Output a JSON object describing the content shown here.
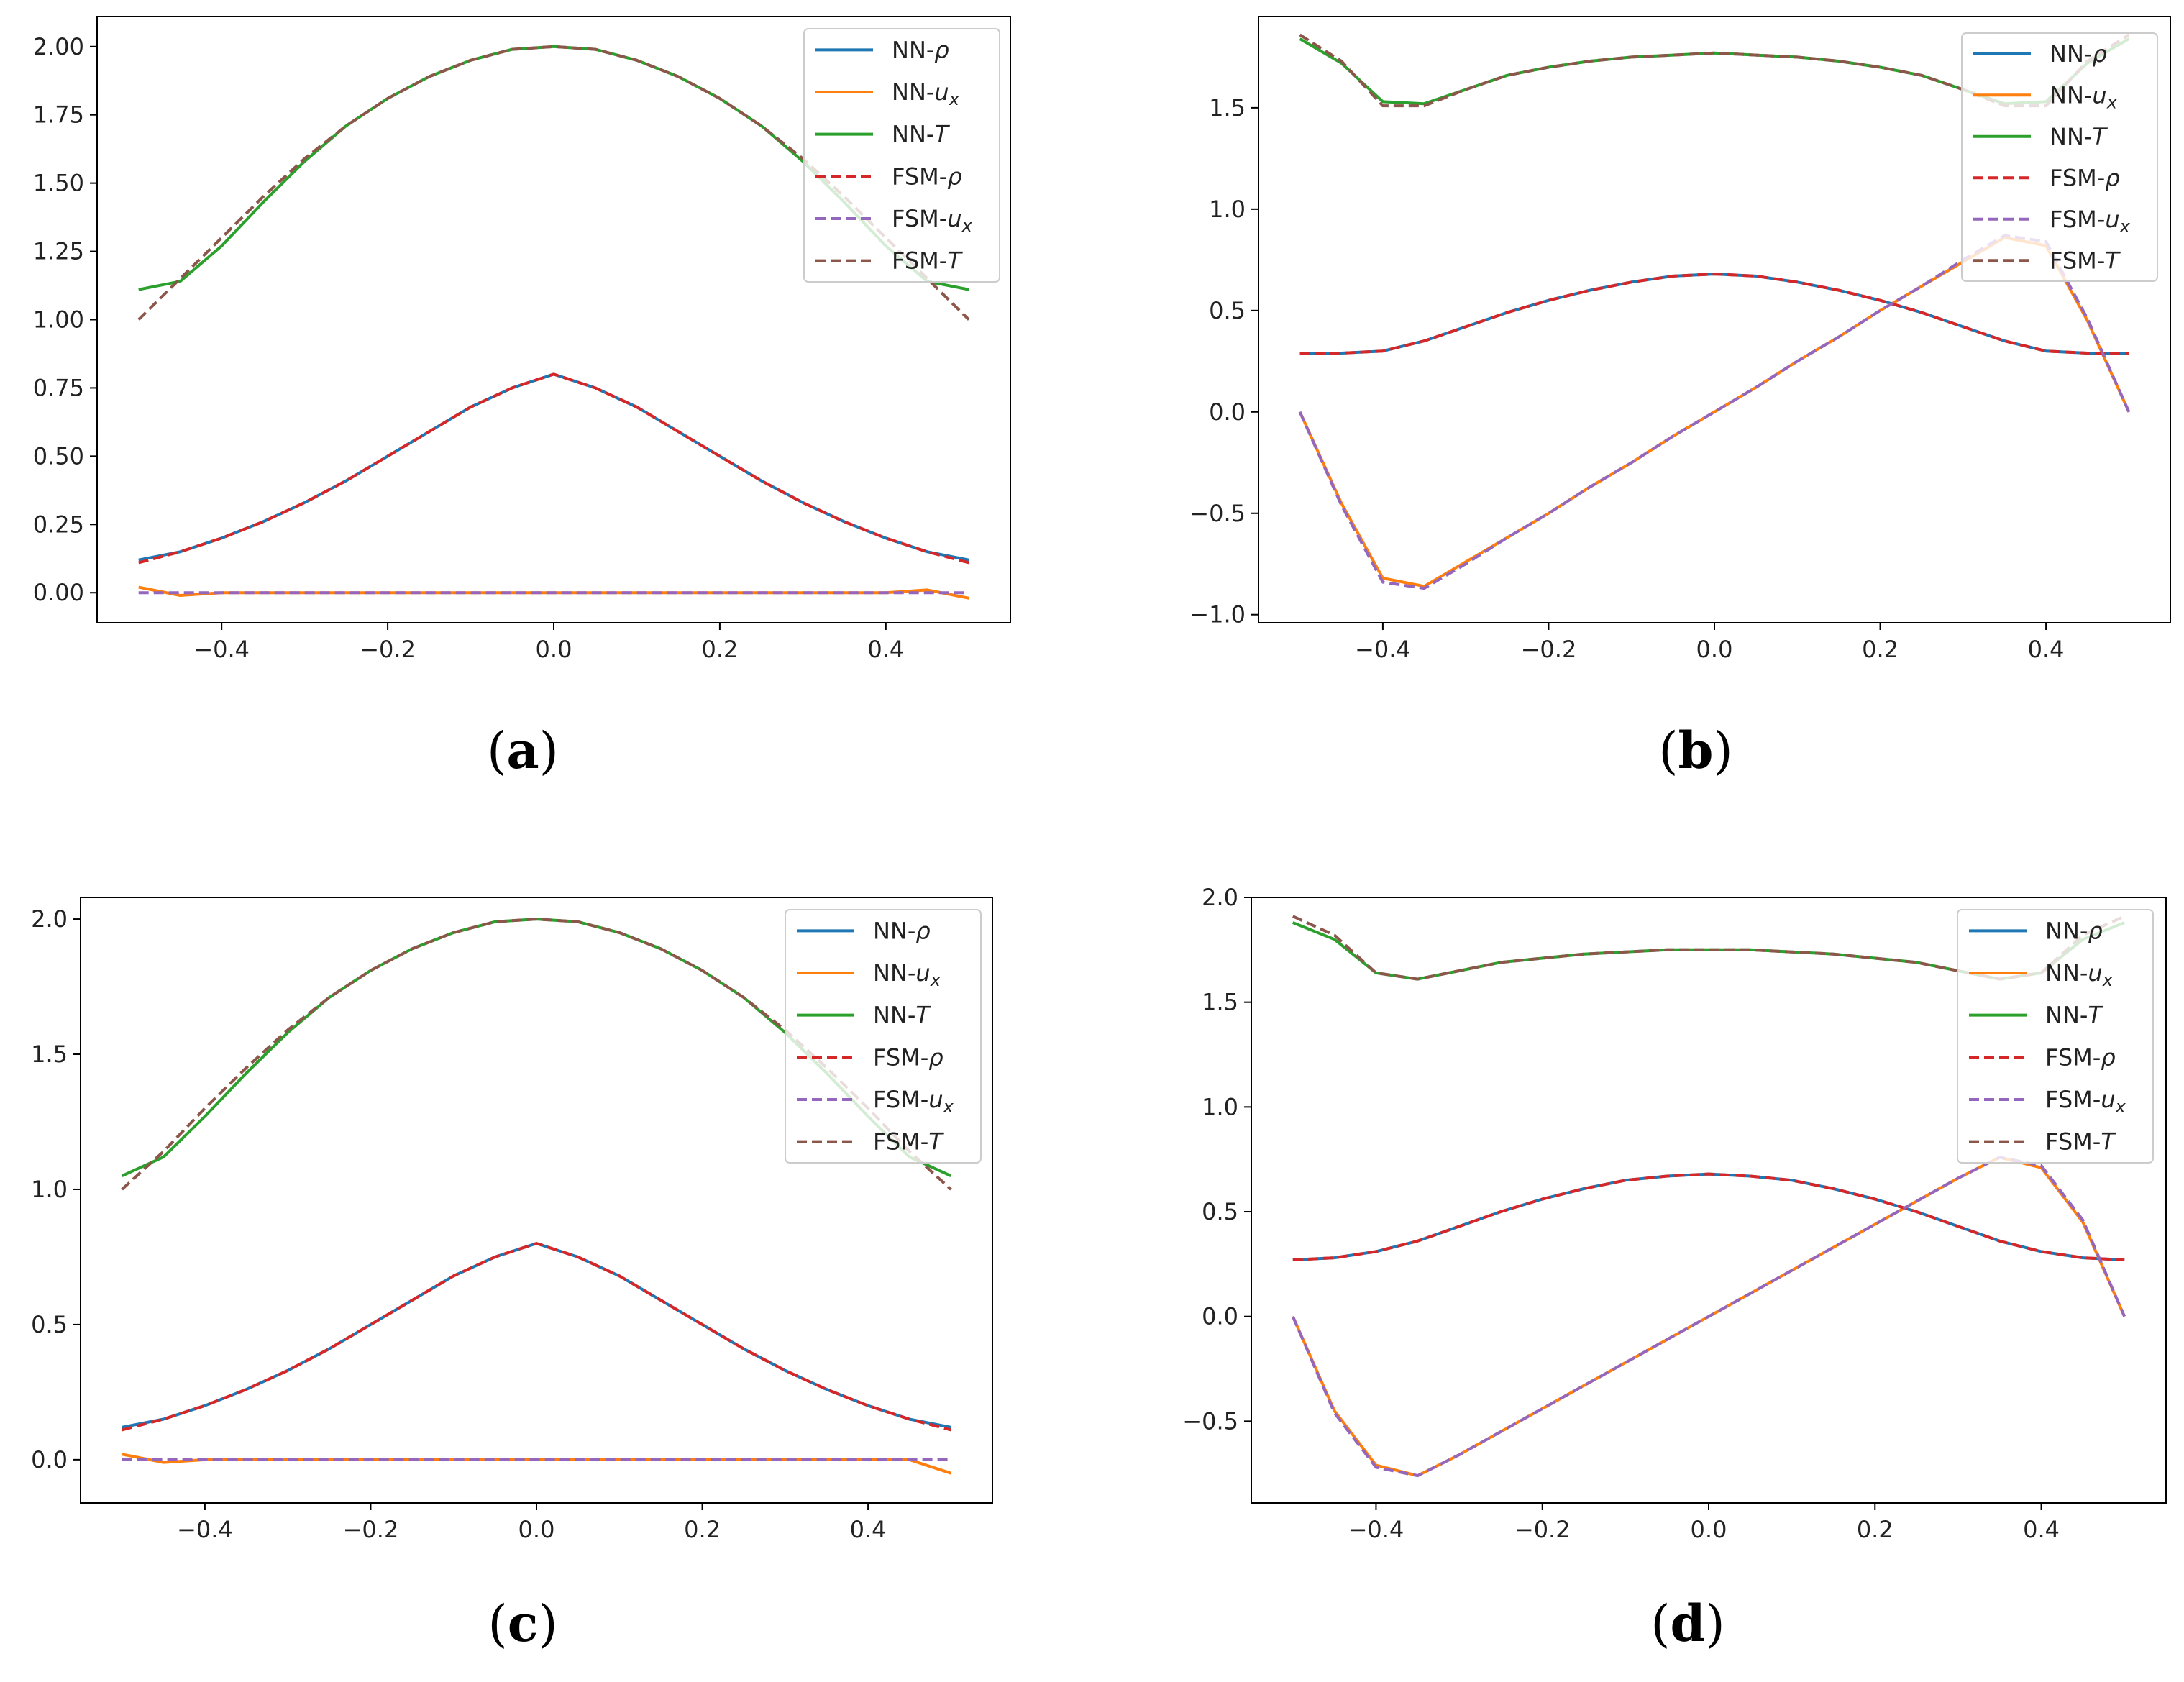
{
  "figure": {
    "colors": {
      "NN_rho": "#1f77b4",
      "NN_ux": "#ff7f0e",
      "NN_T": "#2ca02c",
      "FSM_rho": "#d62728",
      "FSM_ux": "#9467bd",
      "FSM_T": "#8c564b"
    },
    "legend": [
      {
        "prefix": "NN-",
        "symbol": "ρ",
        "sub": "",
        "style": "solid",
        "color_key": "NN_rho"
      },
      {
        "prefix": "NN-",
        "symbol": "u",
        "sub": "x",
        "style": "solid",
        "color_key": "NN_ux"
      },
      {
        "prefix": "NN-",
        "symbol": "T",
        "sub": "",
        "style": "solid",
        "color_key": "NN_T"
      },
      {
        "prefix": "FSM-",
        "symbol": "ρ",
        "sub": "",
        "style": "dashed",
        "color_key": "FSM_rho"
      },
      {
        "prefix": "FSM-",
        "symbol": "u",
        "sub": "x",
        "style": "dashed",
        "color_key": "FSM_ux"
      },
      {
        "prefix": "FSM-",
        "symbol": "T",
        "sub": "",
        "style": "dashed",
        "color_key": "FSM_T"
      }
    ]
  },
  "chart_data": [
    {
      "type": "line",
      "panel_label": {
        "open": "(",
        "letter": "a",
        "close": ")"
      },
      "xlim": [
        -0.55,
        0.55
      ],
      "ylim": [
        -0.11,
        2.11
      ],
      "xticks": [
        {
          "v": -0.4,
          "label": "−0.4"
        },
        {
          "v": -0.2,
          "label": "−0.2"
        },
        {
          "v": 0.0,
          "label": "0.0"
        },
        {
          "v": 0.2,
          "label": "0.2"
        },
        {
          "v": 0.4,
          "label": "0.4"
        }
      ],
      "yticks": [
        {
          "v": 0.0,
          "label": "0.00"
        },
        {
          "v": 0.25,
          "label": "0.25"
        },
        {
          "v": 0.5,
          "label": "0.50"
        },
        {
          "v": 0.75,
          "label": "0.75"
        },
        {
          "v": 1.0,
          "label": "1.00"
        },
        {
          "v": 1.25,
          "label": "1.25"
        },
        {
          "v": 1.5,
          "label": "1.50"
        },
        {
          "v": 1.75,
          "label": "1.75"
        },
        {
          "v": 2.0,
          "label": "2.00"
        }
      ],
      "legend_position": "top-right",
      "x": [
        -0.5,
        -0.45,
        -0.4,
        -0.35,
        -0.3,
        -0.25,
        -0.2,
        -0.15,
        -0.1,
        -0.05,
        0.0,
        0.05,
        0.1,
        0.15,
        0.2,
        0.25,
        0.3,
        0.35,
        0.4,
        0.45,
        0.5
      ],
      "series": [
        {
          "name": "NN-ρ",
          "color_key": "NN_rho",
          "style": "solid",
          "values": [
            0.12,
            0.15,
            0.2,
            0.26,
            0.33,
            0.41,
            0.5,
            0.59,
            0.68,
            0.75,
            0.8,
            0.75,
            0.68,
            0.59,
            0.5,
            0.41,
            0.33,
            0.26,
            0.2,
            0.15,
            0.12
          ]
        },
        {
          "name": "NN-ux",
          "color_key": "NN_ux",
          "style": "solid",
          "values": [
            0.02,
            -0.01,
            0.0,
            0.0,
            0.0,
            0.0,
            0.0,
            0.0,
            0.0,
            0.0,
            0.0,
            0.0,
            0.0,
            0.0,
            0.0,
            0.0,
            0.0,
            0.0,
            0.0,
            0.01,
            -0.02
          ]
        },
        {
          "name": "NN-T",
          "color_key": "NN_T",
          "style": "solid",
          "values": [
            1.11,
            1.14,
            1.27,
            1.43,
            1.58,
            1.71,
            1.81,
            1.89,
            1.95,
            1.99,
            2.0,
            1.99,
            1.95,
            1.89,
            1.81,
            1.71,
            1.58,
            1.43,
            1.27,
            1.14,
            1.11
          ]
        },
        {
          "name": "FSM-ρ",
          "color_key": "FSM_rho",
          "style": "dashed",
          "values": [
            0.11,
            0.15,
            0.2,
            0.26,
            0.33,
            0.41,
            0.5,
            0.59,
            0.68,
            0.75,
            0.8,
            0.75,
            0.68,
            0.59,
            0.5,
            0.41,
            0.33,
            0.26,
            0.2,
            0.15,
            0.11
          ]
        },
        {
          "name": "FSM-ux",
          "color_key": "FSM_ux",
          "style": "dashed",
          "values": [
            0.0,
            0.0,
            0.0,
            0.0,
            0.0,
            0.0,
            0.0,
            0.0,
            0.0,
            0.0,
            0.0,
            0.0,
            0.0,
            0.0,
            0.0,
            0.0,
            0.0,
            0.0,
            0.0,
            0.0,
            0.0
          ]
        },
        {
          "name": "FSM-T",
          "color_key": "FSM_T",
          "style": "dashed",
          "values": [
            1.0,
            1.15,
            1.3,
            1.45,
            1.59,
            1.71,
            1.81,
            1.89,
            1.95,
            1.99,
            2.0,
            1.99,
            1.95,
            1.89,
            1.81,
            1.71,
            1.59,
            1.45,
            1.3,
            1.15,
            1.0
          ]
        }
      ]
    },
    {
      "type": "line",
      "panel_label": {
        "open": "(",
        "letter": "b",
        "close": ")"
      },
      "xlim": [
        -0.55,
        0.55
      ],
      "ylim": [
        -1.04,
        1.95
      ],
      "xticks": [
        {
          "v": -0.4,
          "label": "−0.4"
        },
        {
          "v": -0.2,
          "label": "−0.2"
        },
        {
          "v": 0.0,
          "label": "0.0"
        },
        {
          "v": 0.2,
          "label": "0.2"
        },
        {
          "v": 0.4,
          "label": "0.4"
        }
      ],
      "yticks": [
        {
          "v": -1.0,
          "label": "−1.0"
        },
        {
          "v": -0.5,
          "label": "−0.5"
        },
        {
          "v": 0.0,
          "label": "0.0"
        },
        {
          "v": 0.5,
          "label": "0.5"
        },
        {
          "v": 1.0,
          "label": "1.0"
        },
        {
          "v": 1.5,
          "label": "1.5"
        }
      ],
      "legend_position": "top-right",
      "x": [
        -0.5,
        -0.45,
        -0.4,
        -0.35,
        -0.3,
        -0.25,
        -0.2,
        -0.15,
        -0.1,
        -0.05,
        0.0,
        0.05,
        0.1,
        0.15,
        0.2,
        0.25,
        0.3,
        0.35,
        0.4,
        0.45,
        0.5
      ],
      "series": [
        {
          "name": "NN-ρ",
          "color_key": "NN_rho",
          "style": "solid",
          "values": [
            0.29,
            0.29,
            0.3,
            0.35,
            0.42,
            0.49,
            0.55,
            0.6,
            0.64,
            0.67,
            0.68,
            0.67,
            0.64,
            0.6,
            0.55,
            0.49,
            0.42,
            0.35,
            0.3,
            0.29,
            0.29
          ]
        },
        {
          "name": "NN-ux",
          "color_key": "NN_ux",
          "style": "solid",
          "values": [
            0.0,
            -0.45,
            -0.82,
            -0.86,
            -0.74,
            -0.62,
            -0.5,
            -0.37,
            -0.25,
            -0.12,
            0.0,
            0.12,
            0.25,
            0.37,
            0.5,
            0.62,
            0.74,
            0.86,
            0.82,
            0.45,
            0.0
          ]
        },
        {
          "name": "NN-T",
          "color_key": "NN_T",
          "style": "solid",
          "values": [
            1.84,
            1.72,
            1.53,
            1.52,
            1.59,
            1.66,
            1.7,
            1.73,
            1.75,
            1.76,
            1.77,
            1.76,
            1.75,
            1.73,
            1.7,
            1.66,
            1.59,
            1.52,
            1.53,
            1.72,
            1.84
          ]
        },
        {
          "name": "FSM-ρ",
          "color_key": "FSM_rho",
          "style": "dashed",
          "values": [
            0.29,
            0.29,
            0.3,
            0.35,
            0.42,
            0.49,
            0.55,
            0.6,
            0.64,
            0.67,
            0.68,
            0.67,
            0.64,
            0.6,
            0.55,
            0.49,
            0.42,
            0.35,
            0.3,
            0.29,
            0.29
          ]
        },
        {
          "name": "FSM-ux",
          "color_key": "FSM_ux",
          "style": "dashed",
          "values": [
            0.0,
            -0.46,
            -0.84,
            -0.87,
            -0.75,
            -0.62,
            -0.5,
            -0.37,
            -0.25,
            -0.12,
            0.0,
            0.12,
            0.25,
            0.37,
            0.5,
            0.62,
            0.75,
            0.87,
            0.84,
            0.46,
            0.0
          ]
        },
        {
          "name": "FSM-T",
          "color_key": "FSM_T",
          "style": "dashed",
          "values": [
            1.86,
            1.73,
            1.51,
            1.51,
            1.59,
            1.66,
            1.7,
            1.73,
            1.75,
            1.76,
            1.77,
            1.76,
            1.75,
            1.73,
            1.7,
            1.66,
            1.59,
            1.51,
            1.51,
            1.73,
            1.86
          ]
        }
      ]
    },
    {
      "type": "line",
      "panel_label": {
        "open": "(",
        "letter": "c",
        "close": ")"
      },
      "xlim": [
        -0.55,
        0.55
      ],
      "ylim": [
        -0.16,
        2.08
      ],
      "xticks": [
        {
          "v": -0.4,
          "label": "−0.4"
        },
        {
          "v": -0.2,
          "label": "−0.2"
        },
        {
          "v": 0.0,
          "label": "0.0"
        },
        {
          "v": 0.2,
          "label": "0.2"
        },
        {
          "v": 0.4,
          "label": "0.4"
        }
      ],
      "yticks": [
        {
          "v": 0.0,
          "label": "0.0"
        },
        {
          "v": 0.5,
          "label": "0.5"
        },
        {
          "v": 1.0,
          "label": "1.0"
        },
        {
          "v": 1.5,
          "label": "1.5"
        },
        {
          "v": 2.0,
          "label": "2.0"
        }
      ],
      "legend_position": "top-right",
      "x": [
        -0.5,
        -0.45,
        -0.4,
        -0.35,
        -0.3,
        -0.25,
        -0.2,
        -0.15,
        -0.1,
        -0.05,
        0.0,
        0.05,
        0.1,
        0.15,
        0.2,
        0.25,
        0.3,
        0.35,
        0.4,
        0.45,
        0.5
      ],
      "series": [
        {
          "name": "NN-ρ",
          "color_key": "NN_rho",
          "style": "solid",
          "values": [
            0.12,
            0.15,
            0.2,
            0.26,
            0.33,
            0.41,
            0.5,
            0.59,
            0.68,
            0.75,
            0.8,
            0.75,
            0.68,
            0.59,
            0.5,
            0.41,
            0.33,
            0.26,
            0.2,
            0.15,
            0.12
          ]
        },
        {
          "name": "NN-ux",
          "color_key": "NN_ux",
          "style": "solid",
          "values": [
            0.02,
            -0.01,
            0.0,
            0.0,
            0.0,
            0.0,
            0.0,
            0.0,
            0.0,
            0.0,
            0.0,
            0.0,
            0.0,
            0.0,
            0.0,
            0.0,
            0.0,
            0.0,
            0.0,
            0.0,
            -0.05
          ]
        },
        {
          "name": "NN-T",
          "color_key": "NN_T",
          "style": "solid",
          "values": [
            1.05,
            1.12,
            1.27,
            1.43,
            1.58,
            1.71,
            1.81,
            1.89,
            1.95,
            1.99,
            2.0,
            1.99,
            1.95,
            1.89,
            1.81,
            1.71,
            1.58,
            1.43,
            1.27,
            1.12,
            1.05
          ]
        },
        {
          "name": "FSM-ρ",
          "color_key": "FSM_rho",
          "style": "dashed",
          "values": [
            0.11,
            0.15,
            0.2,
            0.26,
            0.33,
            0.41,
            0.5,
            0.59,
            0.68,
            0.75,
            0.8,
            0.75,
            0.68,
            0.59,
            0.5,
            0.41,
            0.33,
            0.26,
            0.2,
            0.15,
            0.11
          ]
        },
        {
          "name": "FSM-ux",
          "color_key": "FSM_ux",
          "style": "dashed",
          "values": [
            0.0,
            0.0,
            0.0,
            0.0,
            0.0,
            0.0,
            0.0,
            0.0,
            0.0,
            0.0,
            0.0,
            0.0,
            0.0,
            0.0,
            0.0,
            0.0,
            0.0,
            0.0,
            0.0,
            0.0,
            0.0
          ]
        },
        {
          "name": "FSM-T",
          "color_key": "FSM_T",
          "style": "dashed",
          "values": [
            1.0,
            1.14,
            1.3,
            1.45,
            1.59,
            1.71,
            1.81,
            1.89,
            1.95,
            1.99,
            2.0,
            1.99,
            1.95,
            1.89,
            1.81,
            1.71,
            1.59,
            1.45,
            1.3,
            1.14,
            1.0
          ]
        }
      ]
    },
    {
      "type": "line",
      "panel_label": {
        "open": "(",
        "letter": "d",
        "close": ")"
      },
      "xlim": [
        -0.55,
        0.55
      ],
      "ylim": [
        -0.89,
        2.0
      ],
      "xticks": [
        {
          "v": -0.4,
          "label": "−0.4"
        },
        {
          "v": -0.2,
          "label": "−0.2"
        },
        {
          "v": 0.0,
          "label": "0.0"
        },
        {
          "v": 0.2,
          "label": "0.2"
        },
        {
          "v": 0.4,
          "label": "0.4"
        }
      ],
      "yticks": [
        {
          "v": -0.5,
          "label": "−0.5"
        },
        {
          "v": 0.0,
          "label": "0.0"
        },
        {
          "v": 0.5,
          "label": "0.5"
        },
        {
          "v": 1.0,
          "label": "1.0"
        },
        {
          "v": 1.5,
          "label": "1.5"
        },
        {
          "v": 2.0,
          "label": "2.0"
        }
      ],
      "legend_position": "top-right",
      "x": [
        -0.5,
        -0.45,
        -0.4,
        -0.35,
        -0.3,
        -0.25,
        -0.2,
        -0.15,
        -0.1,
        -0.05,
        0.0,
        0.05,
        0.1,
        0.15,
        0.2,
        0.25,
        0.3,
        0.35,
        0.4,
        0.45,
        0.5
      ],
      "series": [
        {
          "name": "NN-ρ",
          "color_key": "NN_rho",
          "style": "solid",
          "values": [
            0.27,
            0.28,
            0.31,
            0.36,
            0.43,
            0.5,
            0.56,
            0.61,
            0.65,
            0.67,
            0.68,
            0.67,
            0.65,
            0.61,
            0.56,
            0.5,
            0.43,
            0.36,
            0.31,
            0.28,
            0.27
          ]
        },
        {
          "name": "NN-ux",
          "color_key": "NN_ux",
          "style": "solid",
          "values": [
            0.0,
            -0.45,
            -0.71,
            -0.76,
            -0.66,
            -0.55,
            -0.44,
            -0.33,
            -0.22,
            -0.11,
            0.0,
            0.11,
            0.22,
            0.33,
            0.44,
            0.55,
            0.66,
            0.76,
            0.71,
            0.45,
            0.0
          ]
        },
        {
          "name": "NN-T",
          "color_key": "NN_T",
          "style": "solid",
          "values": [
            1.88,
            1.8,
            1.64,
            1.61,
            1.65,
            1.69,
            1.71,
            1.73,
            1.74,
            1.75,
            1.75,
            1.75,
            1.74,
            1.73,
            1.71,
            1.69,
            1.65,
            1.61,
            1.64,
            1.8,
            1.88
          ]
        },
        {
          "name": "FSM-ρ",
          "color_key": "FSM_rho",
          "style": "dashed",
          "values": [
            0.27,
            0.28,
            0.31,
            0.36,
            0.43,
            0.5,
            0.56,
            0.61,
            0.65,
            0.67,
            0.68,
            0.67,
            0.65,
            0.61,
            0.56,
            0.5,
            0.43,
            0.36,
            0.31,
            0.28,
            0.27
          ]
        },
        {
          "name": "FSM-ux",
          "color_key": "FSM_ux",
          "style": "dashed",
          "values": [
            0.0,
            -0.46,
            -0.72,
            -0.76,
            -0.66,
            -0.55,
            -0.44,
            -0.33,
            -0.22,
            -0.11,
            0.0,
            0.11,
            0.22,
            0.33,
            0.44,
            0.55,
            0.66,
            0.76,
            0.72,
            0.46,
            0.0
          ]
        },
        {
          "name": "FSM-T",
          "color_key": "FSM_T",
          "style": "dashed",
          "values": [
            1.91,
            1.82,
            1.64,
            1.61,
            1.65,
            1.69,
            1.71,
            1.73,
            1.74,
            1.75,
            1.75,
            1.75,
            1.74,
            1.73,
            1.71,
            1.69,
            1.65,
            1.61,
            1.64,
            1.82,
            1.91
          ]
        }
      ]
    }
  ]
}
